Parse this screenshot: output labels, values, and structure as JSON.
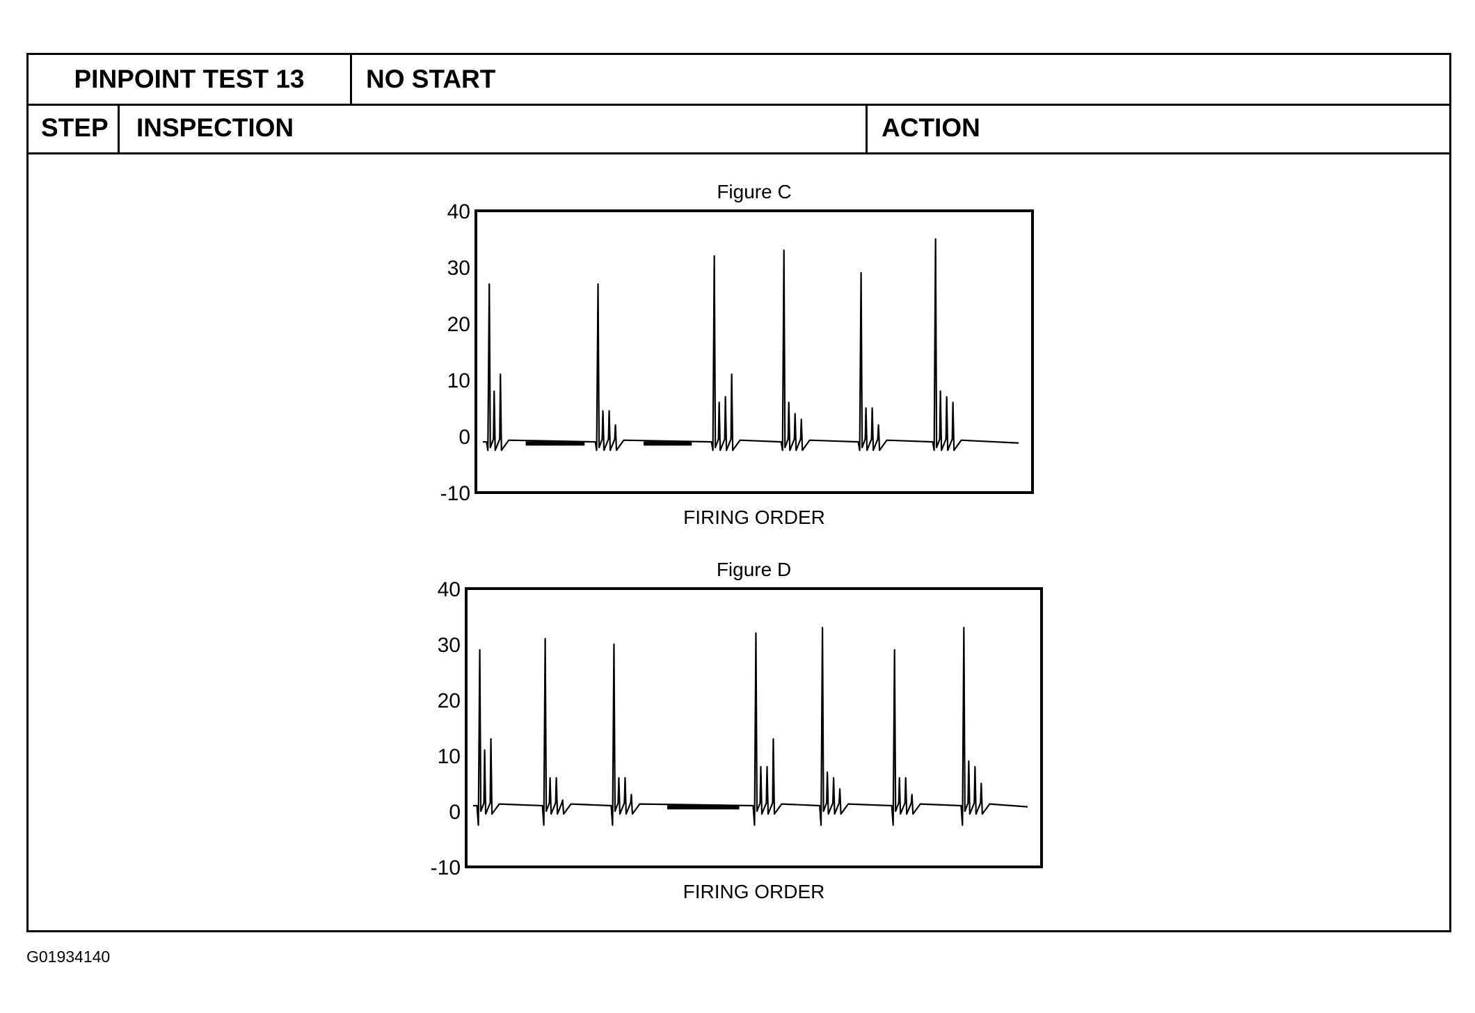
{
  "header": {
    "test_label": "PINPOINT TEST 13",
    "test_title": "NO START",
    "col_step": "STEP",
    "col_inspection": "INSPECTION",
    "col_action": "ACTION"
  },
  "footer": {
    "code": "G01934140"
  },
  "chart_data": [
    {
      "type": "line",
      "title": "Figure C",
      "xlabel": "FIRING ORDER",
      "ylabel": "",
      "ylim": [
        -10,
        40
      ],
      "yticks": [
        40,
        30,
        20,
        10,
        0,
        -10
      ],
      "grid": false,
      "legend": "none",
      "spikes": [
        {
          "x": 0.012,
          "peak": 27,
          "after": [
            8,
            11
          ]
        },
        {
          "x": 0.215,
          "peak": 27,
          "after": [
            4.5,
            4.5,
            2
          ]
        },
        {
          "x": 0.432,
          "peak": 32,
          "after": [
            6,
            7,
            11
          ]
        },
        {
          "x": 0.562,
          "peak": 33,
          "after": [
            6,
            4,
            3
          ]
        },
        {
          "x": 0.706,
          "peak": 29,
          "after": [
            5,
            5,
            2
          ]
        },
        {
          "x": 0.845,
          "peak": 35,
          "after": [
            8,
            7,
            6
          ]
        }
      ],
      "baseline": -1,
      "thick_segments": [
        [
          0.08,
          0.19
        ],
        [
          0.3,
          0.39
        ]
      ]
    },
    {
      "type": "line",
      "title": "Figure D",
      "xlabel": "FIRING ORDER",
      "ylabel": "",
      "ylim": [
        -10,
        40
      ],
      "yticks": [
        40,
        30,
        20,
        10,
        0,
        -10
      ],
      "grid": false,
      "legend": "none",
      "spikes": [
        {
          "x": 0.012,
          "peak": 29,
          "after": [
            11,
            13
          ]
        },
        {
          "x": 0.13,
          "peak": 31,
          "after": [
            6,
            6,
            2
          ]
        },
        {
          "x": 0.254,
          "peak": 30,
          "after": [
            6,
            6,
            3
          ]
        },
        {
          "x": 0.51,
          "peak": 32,
          "after": [
            8,
            8,
            13
          ]
        },
        {
          "x": 0.63,
          "peak": 33,
          "after": [
            7,
            6,
            4
          ]
        },
        {
          "x": 0.76,
          "peak": 29,
          "after": [
            6,
            6,
            3
          ]
        },
        {
          "x": 0.885,
          "peak": 33,
          "after": [
            9,
            8,
            5
          ]
        }
      ],
      "baseline": 1,
      "thick_segments": [
        [
          0.35,
          0.48
        ]
      ]
    }
  ]
}
